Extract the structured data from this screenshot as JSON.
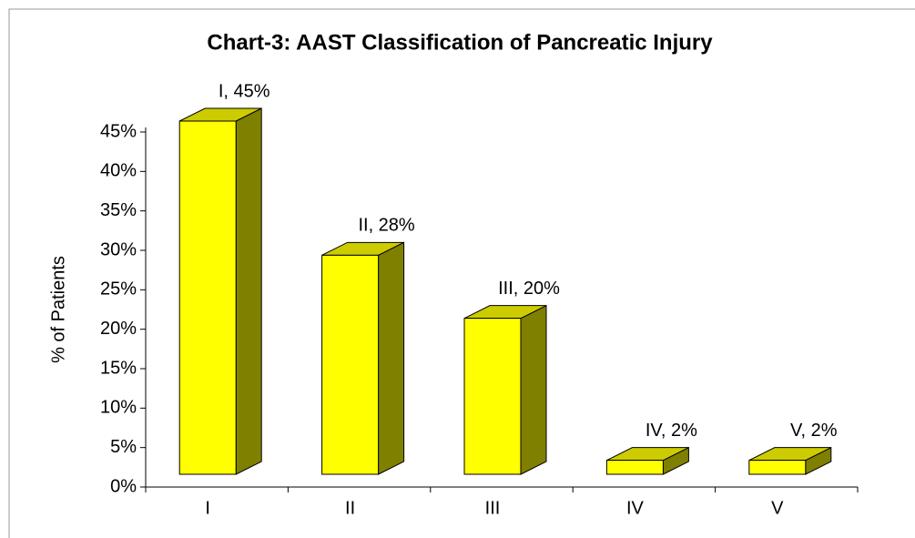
{
  "chart_data": {
    "type": "bar3d",
    "title": "Chart-3: AAST Classification of Pancreatic Injury",
    "ylabel": "% of Patients",
    "categories": [
      "I",
      "II",
      "III",
      "IV",
      "V"
    ],
    "values": [
      45,
      28,
      20,
      2,
      2
    ],
    "value_labels": [
      "I, 45%",
      "II, 28%",
      "III, 20%",
      "IV, 2%",
      "V, 2%"
    ],
    "color": "#ffff00",
    "ylim": [
      0,
      45
    ],
    "yticks": [
      {
        "value": 0,
        "label": "0%"
      },
      {
        "value": 5,
        "label": "5%"
      },
      {
        "value": 10,
        "label": "10%"
      },
      {
        "value": 15,
        "label": "15%"
      },
      {
        "value": 20,
        "label": "20%"
      },
      {
        "value": 25,
        "label": "25%"
      },
      {
        "value": 30,
        "label": "30%"
      },
      {
        "value": 35,
        "label": "35%"
      },
      {
        "value": 40,
        "label": "40%"
      },
      {
        "value": 45,
        "label": "45%"
      }
    ],
    "grid": false
  }
}
